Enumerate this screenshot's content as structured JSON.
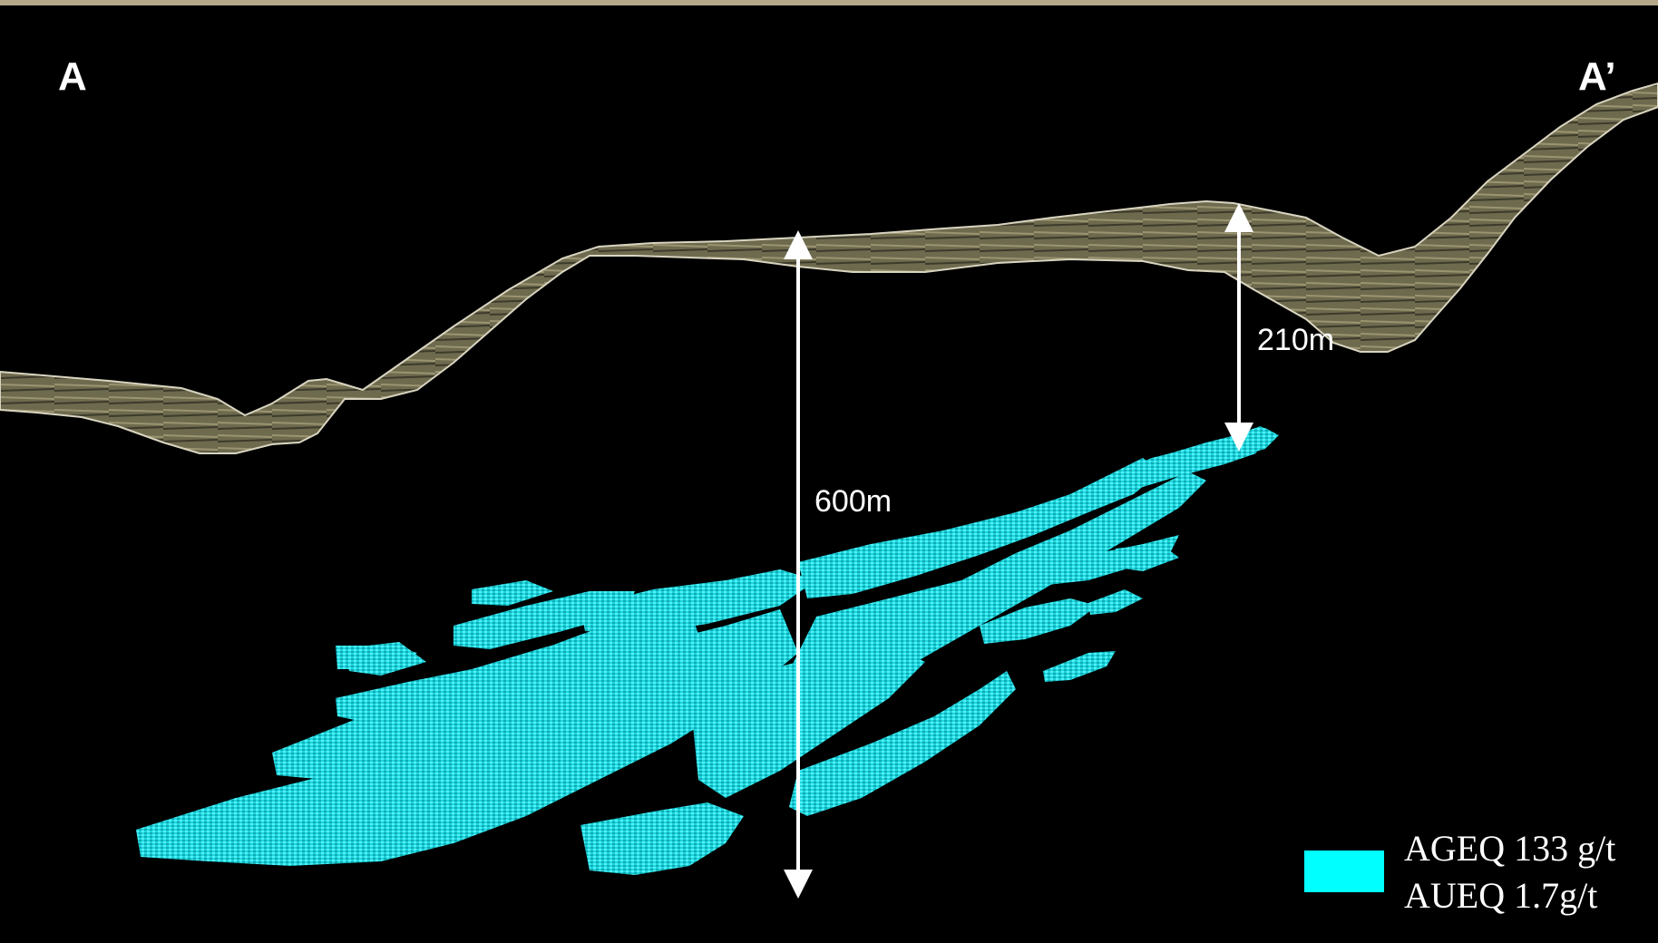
{
  "section": {
    "start_label": "A",
    "end_label": "A’"
  },
  "dimensions": {
    "depth_center": "600m",
    "depth_right": "210m"
  },
  "legend": {
    "line1": "AGEQ 133 g/t",
    "line2": "AUEQ 1.7g/t"
  },
  "colors": {
    "background": "#000000",
    "topography": "#6f6a4f",
    "topography_edge": "#d8d4c0",
    "mineralization": "#00e8f0",
    "top_rule": "#b5a98a",
    "arrows": "#ffffff"
  }
}
